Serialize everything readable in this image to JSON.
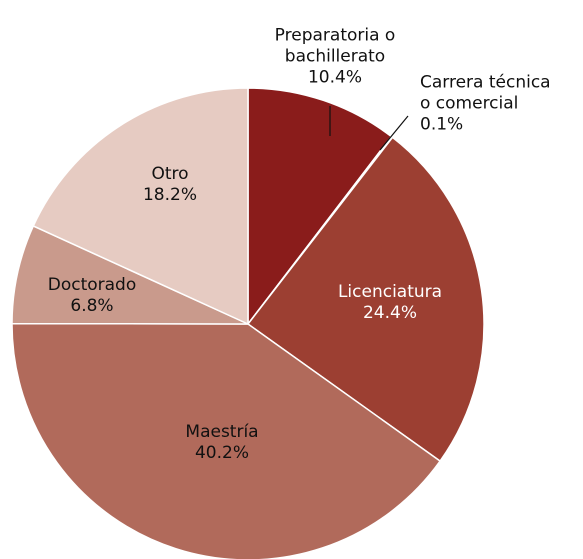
{
  "chart_data": {
    "type": "pie",
    "categories": [
      "Preparatoria o\nbachillerato",
      "Carrera técnica\no comercial",
      "Licenciatura",
      "Maestría",
      "Doctorado",
      "Otro"
    ],
    "values": [
      10.4,
      0.1,
      24.4,
      40.2,
      6.8,
      18.2
    ],
    "value_labels": [
      "10.4%",
      "0.1%",
      "24.4%",
      "40.2%",
      "6.8%",
      "18.2%"
    ],
    "colors": [
      "#8a1c1b",
      "#9c3a30",
      "#9c3f32",
      "#b16a5b",
      "#c99a8c",
      "#e6cbc2"
    ]
  }
}
